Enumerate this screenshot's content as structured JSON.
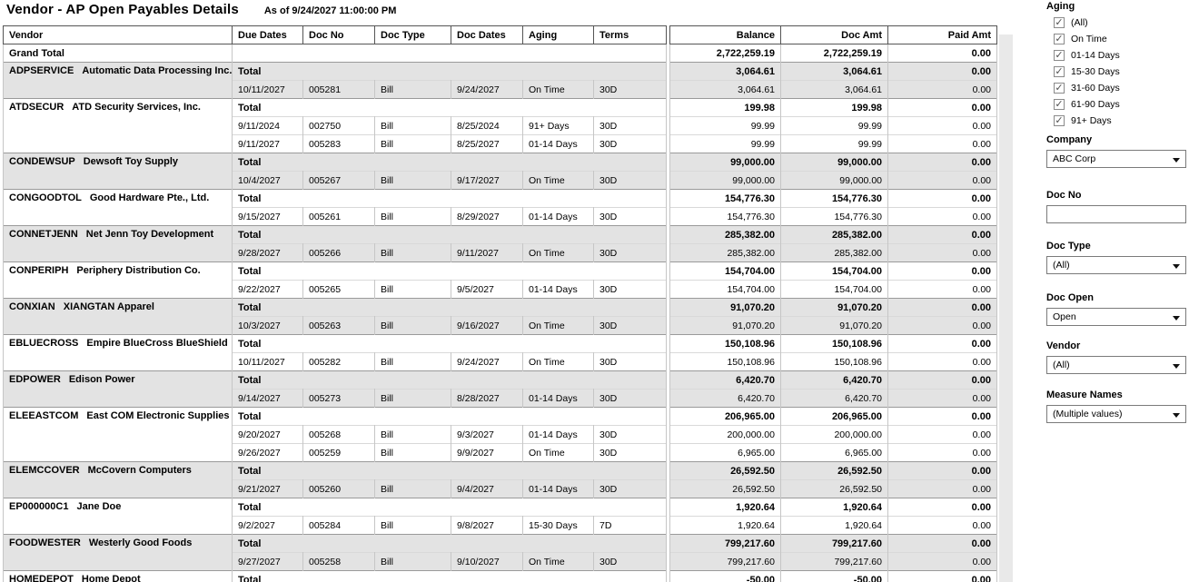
{
  "header": {
    "title": "Vendor - AP Open Payables Details",
    "subtitle": "As of 9/24/2027 11:00:00 PM"
  },
  "colors": {
    "band": "#e3e3e3",
    "border_dark": "#555555",
    "scroll_track": "#e9e9e9"
  },
  "table": {
    "columns": [
      "Vendor",
      "Due Dates",
      "Doc No",
      "Doc Type",
      "Doc Dates",
      "Aging",
      "Terms",
      "Balance",
      "Doc Amt",
      "Paid Amt"
    ],
    "total_label": "Total",
    "grand_total": {
      "label": "Grand Total",
      "balance": "2,722,259.19",
      "doc_amt": "2,722,259.19",
      "paid_amt": "0.00"
    },
    "groups": [
      {
        "vendor_id": "ADPSERVICE",
        "vendor_name": "Automatic Data Processing Inc.",
        "total": {
          "balance": "3,064.61",
          "doc_amt": "3,064.61",
          "paid_amt": "0.00"
        },
        "details": [
          {
            "due_date": "10/11/2027",
            "doc_no": "005281",
            "doc_type": "Bill",
            "doc_date": "9/24/2027",
            "aging": "On Time",
            "terms": "30D",
            "balance": "3,064.61",
            "doc_amt": "3,064.61",
            "paid_amt": "0.00"
          }
        ]
      },
      {
        "vendor_id": "ATDSECUR",
        "vendor_name": "ATD Security Services, Inc.",
        "total": {
          "balance": "199.98",
          "doc_amt": "199.98",
          "paid_amt": "0.00"
        },
        "details": [
          {
            "due_date": "9/11/2024",
            "doc_no": "002750",
            "doc_type": "Bill",
            "doc_date": "8/25/2024",
            "aging": "91+ Days",
            "terms": "30D",
            "balance": "99.99",
            "doc_amt": "99.99",
            "paid_amt": "0.00"
          },
          {
            "due_date": "9/11/2027",
            "doc_no": "005283",
            "doc_type": "Bill",
            "doc_date": "8/25/2027",
            "aging": "01-14 Days",
            "terms": "30D",
            "balance": "99.99",
            "doc_amt": "99.99",
            "paid_amt": "0.00"
          }
        ]
      },
      {
        "vendor_id": "CONDEWSUP",
        "vendor_name": "Dewsoft Toy Supply",
        "total": {
          "balance": "99,000.00",
          "doc_amt": "99,000.00",
          "paid_amt": "0.00"
        },
        "details": [
          {
            "due_date": "10/4/2027",
            "doc_no": "005267",
            "doc_type": "Bill",
            "doc_date": "9/17/2027",
            "aging": "On Time",
            "terms": "30D",
            "balance": "99,000.00",
            "doc_amt": "99,000.00",
            "paid_amt": "0.00"
          }
        ]
      },
      {
        "vendor_id": "CONGOODTOL",
        "vendor_name": "Good Hardware Pte., Ltd.",
        "total": {
          "balance": "154,776.30",
          "doc_amt": "154,776.30",
          "paid_amt": "0.00"
        },
        "details": [
          {
            "due_date": "9/15/2027",
            "doc_no": "005261",
            "doc_type": "Bill",
            "doc_date": "8/29/2027",
            "aging": "01-14 Days",
            "terms": "30D",
            "balance": "154,776.30",
            "doc_amt": "154,776.30",
            "paid_amt": "0.00"
          }
        ]
      },
      {
        "vendor_id": "CONNETJENN",
        "vendor_name": "Net Jenn Toy Development",
        "total": {
          "balance": "285,382.00",
          "doc_amt": "285,382.00",
          "paid_amt": "0.00"
        },
        "details": [
          {
            "due_date": "9/28/2027",
            "doc_no": "005266",
            "doc_type": "Bill",
            "doc_date": "9/11/2027",
            "aging": "On Time",
            "terms": "30D",
            "balance": "285,382.00",
            "doc_amt": "285,382.00",
            "paid_amt": "0.00"
          }
        ]
      },
      {
        "vendor_id": "CONPERIPH",
        "vendor_name": "Periphery Distribution Co.",
        "total": {
          "balance": "154,704.00",
          "doc_amt": "154,704.00",
          "paid_amt": "0.00"
        },
        "details": [
          {
            "due_date": "9/22/2027",
            "doc_no": "005265",
            "doc_type": "Bill",
            "doc_date": "9/5/2027",
            "aging": "01-14 Days",
            "terms": "30D",
            "balance": "154,704.00",
            "doc_amt": "154,704.00",
            "paid_amt": "0.00"
          }
        ]
      },
      {
        "vendor_id": "CONXIAN",
        "vendor_name": "XIANGTAN Apparel",
        "total": {
          "balance": "91,070.20",
          "doc_amt": "91,070.20",
          "paid_amt": "0.00"
        },
        "details": [
          {
            "due_date": "10/3/2027",
            "doc_no": "005263",
            "doc_type": "Bill",
            "doc_date": "9/16/2027",
            "aging": "On Time",
            "terms": "30D",
            "balance": "91,070.20",
            "doc_amt": "91,070.20",
            "paid_amt": "0.00"
          }
        ]
      },
      {
        "vendor_id": "EBLUECROSS",
        "vendor_name": "Empire BlueCross BlueShield",
        "total": {
          "balance": "150,108.96",
          "doc_amt": "150,108.96",
          "paid_amt": "0.00"
        },
        "details": [
          {
            "due_date": "10/11/2027",
            "doc_no": "005282",
            "doc_type": "Bill",
            "doc_date": "9/24/2027",
            "aging": "On Time",
            "terms": "30D",
            "balance": "150,108.96",
            "doc_amt": "150,108.96",
            "paid_amt": "0.00"
          }
        ]
      },
      {
        "vendor_id": "EDPOWER",
        "vendor_name": "Edison Power",
        "total": {
          "balance": "6,420.70",
          "doc_amt": "6,420.70",
          "paid_amt": "0.00"
        },
        "details": [
          {
            "due_date": "9/14/2027",
            "doc_no": "005273",
            "doc_type": "Bill",
            "doc_date": "8/28/2027",
            "aging": "01-14 Days",
            "terms": "30D",
            "balance": "6,420.70",
            "doc_amt": "6,420.70",
            "paid_amt": "0.00"
          }
        ]
      },
      {
        "vendor_id": "ELEEASTCOM",
        "vendor_name": "East COM Electronic Supplies",
        "total": {
          "balance": "206,965.00",
          "doc_amt": "206,965.00",
          "paid_amt": "0.00"
        },
        "details": [
          {
            "due_date": "9/20/2027",
            "doc_no": "005268",
            "doc_type": "Bill",
            "doc_date": "9/3/2027",
            "aging": "01-14 Days",
            "terms": "30D",
            "balance": "200,000.00",
            "doc_amt": "200,000.00",
            "paid_amt": "0.00"
          },
          {
            "due_date": "9/26/2027",
            "doc_no": "005259",
            "doc_type": "Bill",
            "doc_date": "9/9/2027",
            "aging": "On Time",
            "terms": "30D",
            "balance": "6,965.00",
            "doc_amt": "6,965.00",
            "paid_amt": "0.00"
          }
        ]
      },
      {
        "vendor_id": "ELEMCCOVER",
        "vendor_name": "McCovern Computers",
        "total": {
          "balance": "26,592.50",
          "doc_amt": "26,592.50",
          "paid_amt": "0.00"
        },
        "details": [
          {
            "due_date": "9/21/2027",
            "doc_no": "005260",
            "doc_type": "Bill",
            "doc_date": "9/4/2027",
            "aging": "01-14 Days",
            "terms": "30D",
            "balance": "26,592.50",
            "doc_amt": "26,592.50",
            "paid_amt": "0.00"
          }
        ]
      },
      {
        "vendor_id": "EP000000C1",
        "vendor_name": "Jane Doe",
        "total": {
          "balance": "1,920.64",
          "doc_amt": "1,920.64",
          "paid_amt": "0.00"
        },
        "details": [
          {
            "due_date": "9/2/2027",
            "doc_no": "005284",
            "doc_type": "Bill",
            "doc_date": "9/8/2027",
            "aging": "15-30 Days",
            "terms": "7D",
            "balance": "1,920.64",
            "doc_amt": "1,920.64",
            "paid_amt": "0.00"
          }
        ]
      },
      {
        "vendor_id": "FOODWESTER",
        "vendor_name": "Westerly Good Foods",
        "total": {
          "balance": "799,217.60",
          "doc_amt": "799,217.60",
          "paid_amt": "0.00"
        },
        "details": [
          {
            "due_date": "9/27/2027",
            "doc_no": "005258",
            "doc_type": "Bill",
            "doc_date": "9/10/2027",
            "aging": "On Time",
            "terms": "30D",
            "balance": "799,217.60",
            "doc_amt": "799,217.60",
            "paid_amt": "0.00"
          }
        ]
      },
      {
        "vendor_id": "HOMEDEPOT",
        "vendor_name": "Home Depot",
        "total": {
          "balance": "-50.00",
          "doc_amt": "-50.00",
          "paid_amt": "0.00"
        },
        "details": []
      }
    ]
  },
  "filters": {
    "aging": {
      "label": "Aging",
      "options": [
        {
          "label": "(All)",
          "checked": true
        },
        {
          "label": "On Time",
          "checked": true
        },
        {
          "label": "01-14 Days",
          "checked": true
        },
        {
          "label": "15-30 Days",
          "checked": true
        },
        {
          "label": "31-60 Days",
          "checked": true
        },
        {
          "label": "61-90 Days",
          "checked": true
        },
        {
          "label": "91+ Days",
          "checked": true
        }
      ]
    },
    "company": {
      "label": "Company",
      "value": "ABC Corp"
    },
    "doc_no": {
      "label": "Doc No",
      "value": "",
      "placeholder": ""
    },
    "doc_type": {
      "label": "Doc Type",
      "value": "(All)"
    },
    "doc_open": {
      "label": "Doc Open",
      "value": "Open"
    },
    "vendor": {
      "label": "Vendor",
      "value": "(All)"
    },
    "measure_names": {
      "label": "Measure Names",
      "value": "(Multiple values)"
    }
  }
}
